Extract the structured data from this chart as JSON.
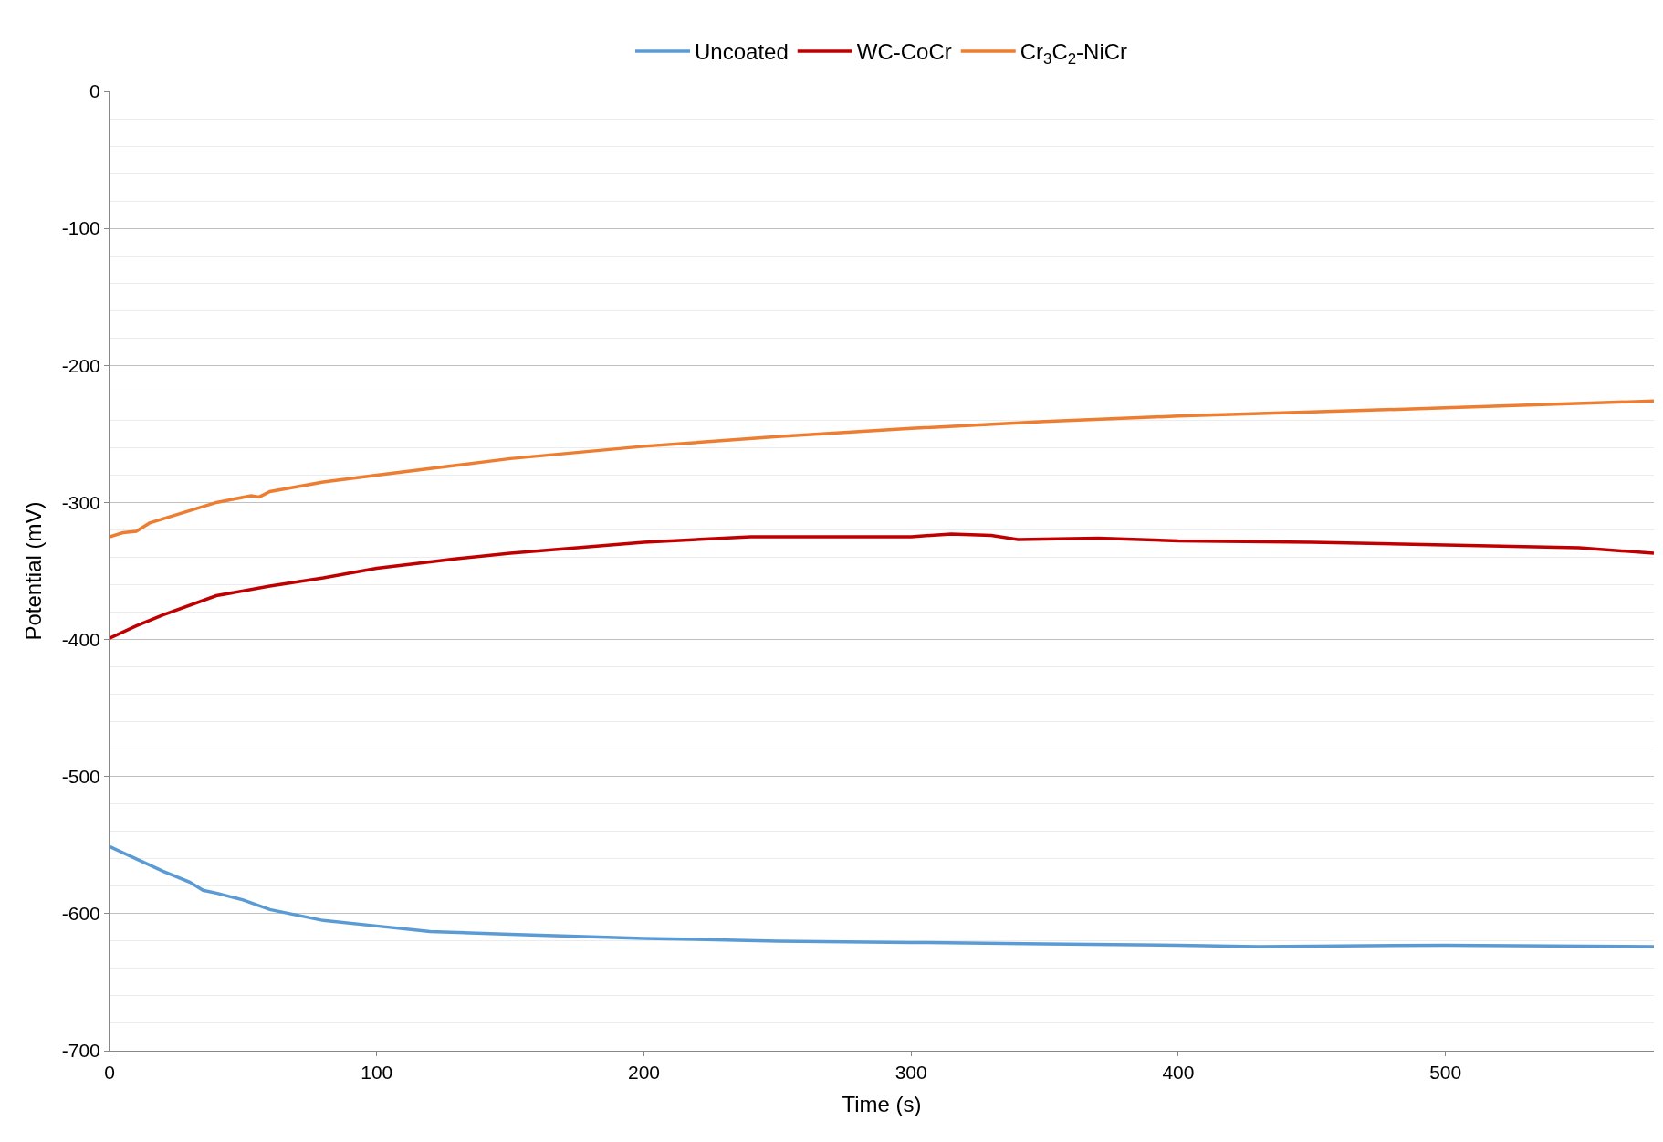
{
  "chart_data": {
    "type": "line",
    "xlabel": "Time (s)",
    "ylabel": "Potential (mV)",
    "xlim": [
      0,
      578
    ],
    "xticks": [
      0,
      100,
      200,
      300,
      400,
      500
    ],
    "ylim": [
      -700,
      0
    ],
    "yticks": [
      0,
      {
        "value": -20,
        "label": null
      },
      {
        "value": -40,
        "label": null
      },
      {
        "value": -60,
        "label": null
      },
      {
        "value": -80,
        "label": null
      },
      -100,
      {
        "value": -120,
        "label": null
      },
      {
        "value": -140,
        "label": null
      },
      {
        "value": -160,
        "label": null
      },
      {
        "value": -180,
        "label": null
      },
      -200,
      {
        "value": -220,
        "label": null
      },
      {
        "value": -240,
        "label": null
      },
      {
        "value": -260,
        "label": null
      },
      {
        "value": -280,
        "label": null
      },
      -300,
      {
        "value": -320,
        "label": null
      },
      {
        "value": -340,
        "label": null
      },
      {
        "value": -360,
        "label": null
      },
      {
        "value": -380,
        "label": null
      },
      -400,
      {
        "value": -420,
        "label": null
      },
      {
        "value": -440,
        "label": null
      },
      {
        "value": -460,
        "label": null
      },
      {
        "value": -480,
        "label": null
      },
      -500,
      {
        "value": -520,
        "label": null
      },
      {
        "value": -540,
        "label": null
      },
      {
        "value": -560,
        "label": null
      },
      {
        "value": -580,
        "label": null
      },
      -600,
      {
        "value": -620,
        "label": null
      },
      {
        "value": -640,
        "label": null
      },
      {
        "value": -660,
        "label": null
      },
      {
        "value": -680,
        "label": null
      },
      -700
    ],
    "grid": "y",
    "legend": "top",
    "marker": "none",
    "line_style": "solid",
    "series": [
      {
        "name": "Uncoated",
        "color": "#5b9bd5",
        "x": [
          0,
          10,
          20,
          30,
          35,
          40,
          50,
          60,
          70,
          80,
          100,
          120,
          150,
          200,
          250,
          300,
          350,
          400,
          430,
          500,
          578
        ],
        "values": [
          -551,
          -560,
          -569,
          -577,
          -583,
          -585,
          -590,
          -597,
          -601,
          -605,
          -609,
          -613,
          -615,
          -618,
          -620,
          -621,
          -622,
          -623,
          -624,
          -623,
          -624
        ]
      },
      {
        "name": "WC-CoCr",
        "color": "#c00000",
        "x": [
          0,
          10,
          20,
          40,
          60,
          80,
          100,
          130,
          150,
          200,
          240,
          270,
          300,
          315,
          330,
          340,
          370,
          400,
          450,
          500,
          550,
          578
        ],
        "values": [
          -399,
          -390,
          -382,
          -368,
          -361,
          -355,
          -348,
          -341,
          -337,
          -329,
          -325,
          -325,
          -325,
          -323,
          -324,
          -327,
          -326,
          -328,
          -329,
          -331,
          -333,
          -337
        ]
      },
      {
        "name": "Cr$_{3}$C$_{2}$-NiCr",
        "color": "#ed7d31",
        "x": [
          0,
          5,
          10,
          15,
          25,
          40,
          53,
          56,
          60,
          80,
          100,
          150,
          200,
          250,
          300,
          350,
          400,
          450,
          500,
          578
        ],
        "values": [
          -325,
          -322,
          -321,
          -315,
          -309,
          -300,
          -295,
          -296,
          -292,
          -285,
          -280,
          -268,
          -259,
          -252,
          -246,
          -241,
          -237,
          -234,
          -231,
          -226
        ]
      }
    ]
  }
}
